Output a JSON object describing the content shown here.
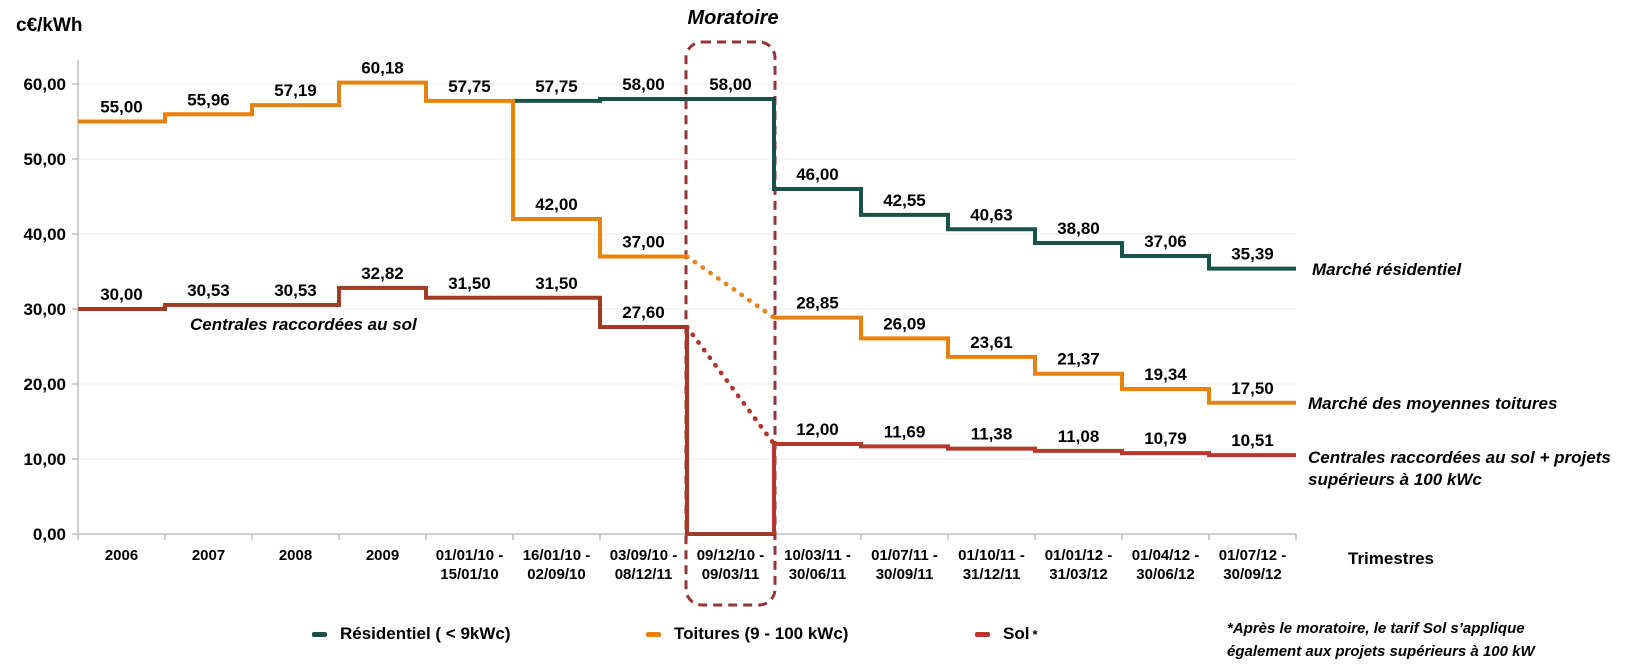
{
  "labels": {
    "unit": "c€/kWh",
    "trimestres": "Trimestres",
    "footnote": "*Après le moratoire, le tarif Sol s’applique\négalement aux projets supérieurs à 100 kW"
  },
  "moratoire": {
    "label": "Moratoire",
    "category_index": 7,
    "box_color": "#943634"
  },
  "annotations": {
    "in_plot": "Centrales raccordées au sol",
    "right_residentiel": "Marché résidentiel",
    "right_toitures": "Marché des moyennes toitures",
    "right_sol": "Centrales raccordées au sol + projets\nsupérieurs à 100 kWc"
  },
  "legend": [
    {
      "label": "Résidentiel ( < 9kWc)",
      "color": "#19524B",
      "suffix": ""
    },
    {
      "label": "Toitures (9 - 100 kWc)",
      "color": "#E8820E",
      "suffix": ""
    },
    {
      "label": "Sol",
      "color": "#B5382B",
      "suffix": "*"
    }
  ],
  "chart_data": {
    "type": "line",
    "step": true,
    "title": "",
    "xlabel": "Trimestres",
    "ylabel": "c€/kWh",
    "ylim": [
      0,
      60
    ],
    "ytick_values": [
      0,
      10,
      20,
      30,
      40,
      50,
      60
    ],
    "ytick_labels": [
      "0,00",
      "10,00",
      "20,00",
      "30,00",
      "40,00",
      "50,00",
      "60,00"
    ],
    "grid": "horizontal-light",
    "legend_position": "bottom",
    "categories": [
      {
        "lines": [
          "2006"
        ]
      },
      {
        "lines": [
          "2007"
        ]
      },
      {
        "lines": [
          "2008"
        ]
      },
      {
        "lines": [
          "2009"
        ]
      },
      {
        "lines": [
          "01/01/10 -",
          "15/01/10"
        ]
      },
      {
        "lines": [
          "16/01/10 -",
          "02/09/10"
        ]
      },
      {
        "lines": [
          "03/09/10 -",
          "08/12/11"
        ]
      },
      {
        "lines": [
          "09/12/10 -",
          "09/03/11"
        ]
      },
      {
        "lines": [
          "10/03/11 -",
          "30/06/11"
        ]
      },
      {
        "lines": [
          "01/07/11 -",
          "30/09/11"
        ]
      },
      {
        "lines": [
          "01/10/11 -",
          "31/12/11"
        ]
      },
      {
        "lines": [
          "01/01/12 -",
          "31/03/12"
        ]
      },
      {
        "lines": [
          "01/04/12 -",
          "30/06/12"
        ]
      },
      {
        "lines": [
          "01/07/12 -",
          "30/09/12"
        ]
      }
    ],
    "series": [
      {
        "name": "Résidentiel ( < 9kWc)",
        "color": "#19524B",
        "values": [
          null,
          null,
          null,
          null,
          null,
          57.75,
          58.0,
          58.0,
          46.0,
          42.55,
          40.63,
          38.8,
          37.06,
          35.39
        ],
        "labels": [
          null,
          null,
          null,
          null,
          null,
          "57,75",
          "58,00",
          "58,00",
          "46,00",
          "42,55",
          "40,63",
          "38,80",
          "37,06",
          "35,39"
        ]
      },
      {
        "name": "Toitures (9 - 100 kWc)",
        "color": "#E8820E",
        "values": [
          55.0,
          55.96,
          57.19,
          60.18,
          57.75,
          42.0,
          37.0,
          null,
          28.85,
          26.09,
          23.61,
          21.37,
          19.34,
          17.5
        ],
        "labels": [
          "55,00",
          "55,96",
          "57,19",
          "60,18",
          "57,75",
          "42,00",
          "37,00",
          null,
          "28,85",
          "26,09",
          "23,61",
          "21,37",
          "19,34",
          "17,50"
        ],
        "transition": {
          "from_index": 6,
          "to_index": 8,
          "style": "dotted",
          "color": "#E8820E"
        }
      },
      {
        "name": "Sol",
        "color": "#A03B25",
        "color_post": "#B5382B",
        "split_at": 8,
        "values": [
          30.0,
          30.53,
          30.53,
          32.82,
          31.5,
          31.5,
          27.6,
          0,
          12.0,
          11.69,
          11.38,
          11.08,
          10.79,
          10.51
        ],
        "labels": [
          "30,00",
          "30,53",
          "30,53",
          "32,82",
          "31,50",
          "31,50",
          "27,60",
          null,
          "12,00",
          "11,69",
          "11,38",
          "11,08",
          "10,79",
          "10,51"
        ],
        "transition": {
          "from_index": 6,
          "to_index": 8,
          "style": "dotted",
          "color": "#AC3528"
        }
      }
    ]
  }
}
